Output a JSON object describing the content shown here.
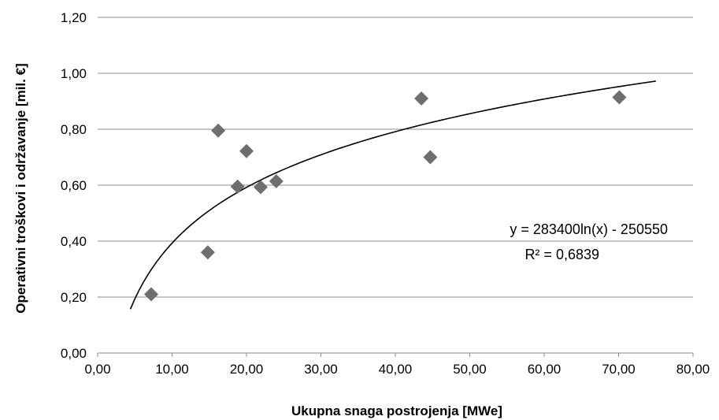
{
  "chart_data": {
    "type": "scatter",
    "title": "",
    "xlabel": "Ukupna snaga postrojenja [MWe]",
    "ylabel": "Operativni troškovi i održavanje [mil. €]",
    "xlim": [
      0,
      80
    ],
    "ylim": [
      0,
      1.2
    ],
    "x_ticks": [
      0,
      10,
      20,
      30,
      40,
      50,
      60,
      70,
      80
    ],
    "y_ticks": [
      0,
      0.2,
      0.4,
      0.6,
      0.8,
      1.0,
      1.2
    ],
    "x_tick_labels": [
      "0,00",
      "10,00",
      "20,00",
      "30,00",
      "40,00",
      "50,00",
      "60,00",
      "70,00",
      "80,00"
    ],
    "y_tick_labels": [
      "0,00",
      "0,20",
      "0,40",
      "0,60",
      "0,80",
      "1,00",
      "1,20"
    ],
    "grid": "horizontal",
    "marker": "diamond",
    "marker_color": "#6e6e6e",
    "points": [
      {
        "x": 7.2,
        "y": 0.21
      },
      {
        "x": 14.8,
        "y": 0.36
      },
      {
        "x": 16.2,
        "y": 0.795
      },
      {
        "x": 18.8,
        "y": 0.595
      },
      {
        "x": 20.0,
        "y": 0.722
      },
      {
        "x": 21.9,
        "y": 0.593
      },
      {
        "x": 24.0,
        "y": 0.614
      },
      {
        "x": 43.5,
        "y": 0.91
      },
      {
        "x": 44.7,
        "y": 0.7
      },
      {
        "x": 70.1,
        "y": 0.914
      }
    ],
    "trendline": {
      "type": "logarithmic",
      "equation": "y = 283400ln(x) - 250550",
      "r_squared": "R² = 0,6839",
      "color": "#000000",
      "x_range": [
        4.4,
        75
      ],
      "y_start": 0.157,
      "y_end": 0.972
    }
  }
}
